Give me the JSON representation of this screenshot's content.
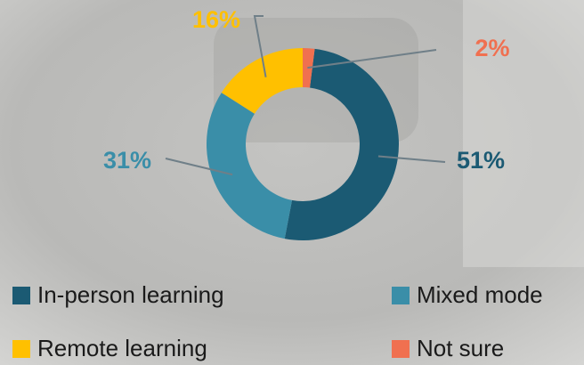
{
  "chart_data": {
    "type": "donut",
    "categories": [
      "In-person learning",
      "Mixed mode",
      "Remote learning",
      "Not sure"
    ],
    "values": [
      51,
      31,
      16,
      2
    ],
    "value_labels": [
      "51%",
      "31%",
      "16%",
      "2%"
    ],
    "colors": [
      "#1b5a73",
      "#3a8ea8",
      "#ffc000",
      "#f07050"
    ]
  }
}
